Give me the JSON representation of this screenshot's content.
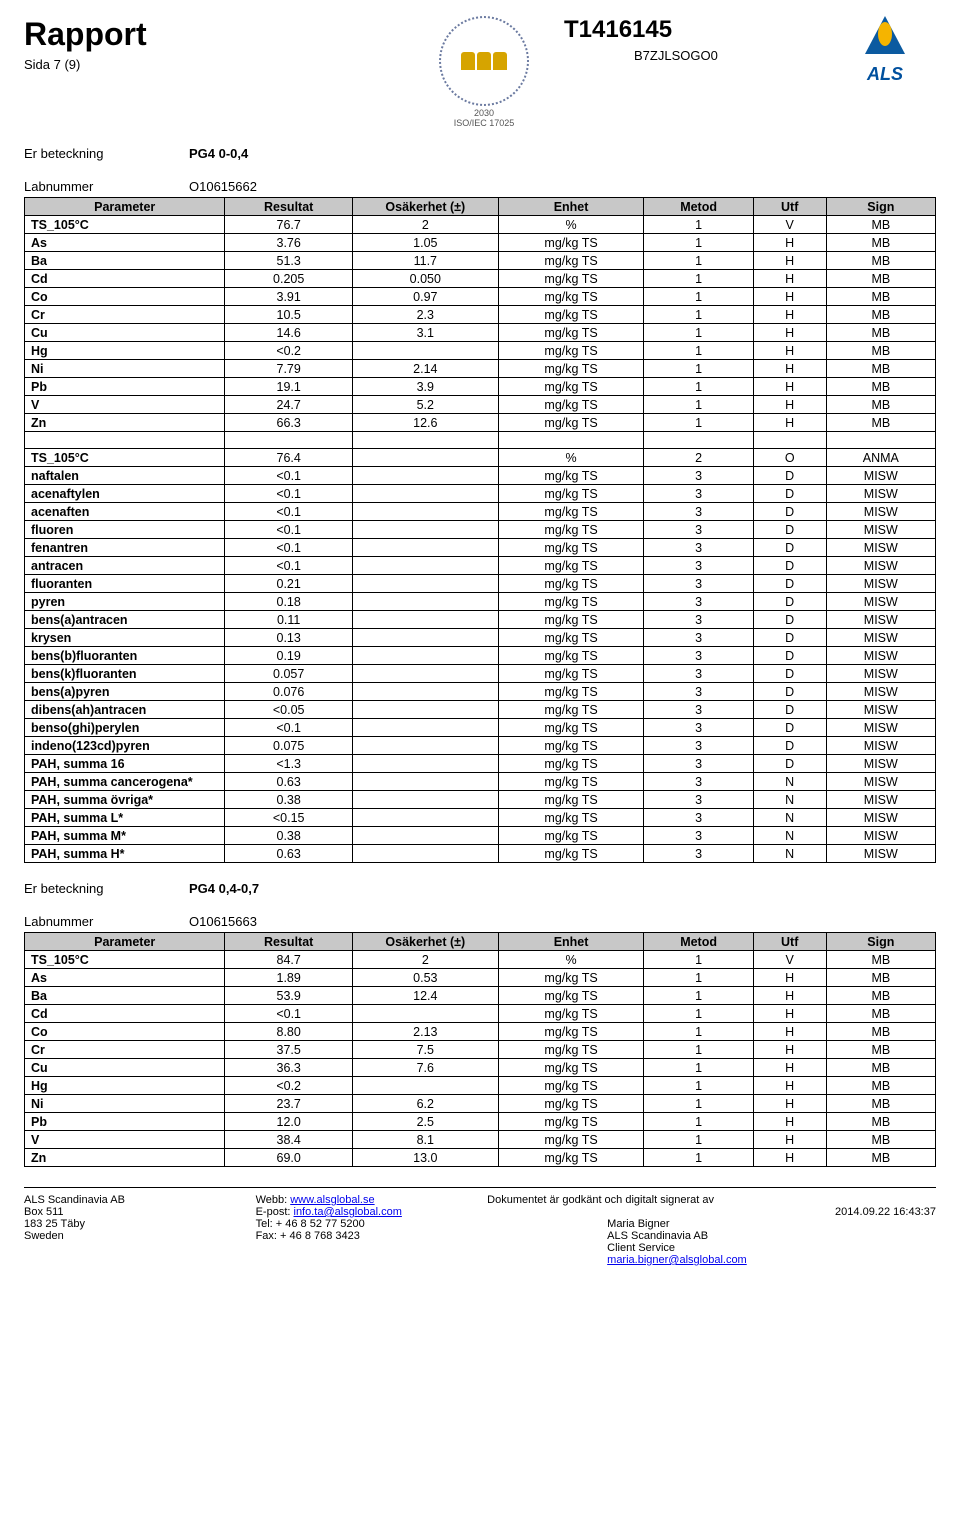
{
  "header": {
    "title": "Rapport",
    "page": "Sida 7 (9)",
    "report_no": "T1416145",
    "ref_code": "B7ZJLSOGO0",
    "swedac_year": "2030",
    "swedac_std": "ISO/IEC 17025",
    "als": "ALS"
  },
  "block1": {
    "er_label": "Er beteckning",
    "er_value": "PG4 0-0,4",
    "lab_label": "Labnummer",
    "lab_value": "O10615662",
    "cols": [
      "Parameter",
      "Resultat",
      "Osäkerhet (±)",
      "Enhet",
      "Metod",
      "Utf",
      "Sign"
    ],
    "rows": [
      [
        "TS_105°C",
        "76.7",
        "2",
        "%",
        "1",
        "V",
        "MB"
      ],
      [
        "As",
        "3.76",
        "1.05",
        "mg/kg TS",
        "1",
        "H",
        "MB"
      ],
      [
        "Ba",
        "51.3",
        "11.7",
        "mg/kg TS",
        "1",
        "H",
        "MB"
      ],
      [
        "Cd",
        "0.205",
        "0.050",
        "mg/kg TS",
        "1",
        "H",
        "MB"
      ],
      [
        "Co",
        "3.91",
        "0.97",
        "mg/kg TS",
        "1",
        "H",
        "MB"
      ],
      [
        "Cr",
        "10.5",
        "2.3",
        "mg/kg TS",
        "1",
        "H",
        "MB"
      ],
      [
        "Cu",
        "14.6",
        "3.1",
        "mg/kg TS",
        "1",
        "H",
        "MB"
      ],
      [
        "Hg",
        "<0.2",
        "",
        "mg/kg TS",
        "1",
        "H",
        "MB"
      ],
      [
        "Ni",
        "7.79",
        "2.14",
        "mg/kg TS",
        "1",
        "H",
        "MB"
      ],
      [
        "Pb",
        "19.1",
        "3.9",
        "mg/kg TS",
        "1",
        "H",
        "MB"
      ],
      [
        "V",
        "24.7",
        "5.2",
        "mg/kg TS",
        "1",
        "H",
        "MB"
      ],
      [
        "Zn",
        "66.3",
        "12.6",
        "mg/kg TS",
        "1",
        "H",
        "MB"
      ]
    ],
    "rows2": [
      [
        "TS_105°C",
        "76.4",
        "",
        "%",
        "2",
        "O",
        "ANMA"
      ],
      [
        "naftalen",
        "<0.1",
        "",
        "mg/kg TS",
        "3",
        "D",
        "MISW"
      ],
      [
        "acenaftylen",
        "<0.1",
        "",
        "mg/kg TS",
        "3",
        "D",
        "MISW"
      ],
      [
        "acenaften",
        "<0.1",
        "",
        "mg/kg TS",
        "3",
        "D",
        "MISW"
      ],
      [
        "fluoren",
        "<0.1",
        "",
        "mg/kg TS",
        "3",
        "D",
        "MISW"
      ],
      [
        "fenantren",
        "<0.1",
        "",
        "mg/kg TS",
        "3",
        "D",
        "MISW"
      ],
      [
        "antracen",
        "<0.1",
        "",
        "mg/kg TS",
        "3",
        "D",
        "MISW"
      ],
      [
        "fluoranten",
        "0.21",
        "",
        "mg/kg TS",
        "3",
        "D",
        "MISW"
      ],
      [
        "pyren",
        "0.18",
        "",
        "mg/kg TS",
        "3",
        "D",
        "MISW"
      ],
      [
        "bens(a)antracen",
        "0.11",
        "",
        "mg/kg TS",
        "3",
        "D",
        "MISW"
      ],
      [
        "krysen",
        "0.13",
        "",
        "mg/kg TS",
        "3",
        "D",
        "MISW"
      ],
      [
        "bens(b)fluoranten",
        "0.19",
        "",
        "mg/kg TS",
        "3",
        "D",
        "MISW"
      ],
      [
        "bens(k)fluoranten",
        "0.057",
        "",
        "mg/kg TS",
        "3",
        "D",
        "MISW"
      ],
      [
        "bens(a)pyren",
        "0.076",
        "",
        "mg/kg TS",
        "3",
        "D",
        "MISW"
      ],
      [
        "dibens(ah)antracen",
        "<0.05",
        "",
        "mg/kg TS",
        "3",
        "D",
        "MISW"
      ],
      [
        "benso(ghi)perylen",
        "<0.1",
        "",
        "mg/kg TS",
        "3",
        "D",
        "MISW"
      ],
      [
        "indeno(123cd)pyren",
        "0.075",
        "",
        "mg/kg TS",
        "3",
        "D",
        "MISW"
      ],
      [
        "PAH, summa 16",
        "<1.3",
        "",
        "mg/kg TS",
        "3",
        "D",
        "MISW"
      ],
      [
        "PAH, summa cancerogena*",
        "0.63",
        "",
        "mg/kg TS",
        "3",
        "N",
        "MISW"
      ],
      [
        "PAH, summa övriga*",
        "0.38",
        "",
        "mg/kg TS",
        "3",
        "N",
        "MISW"
      ],
      [
        "PAH, summa L*",
        "<0.15",
        "",
        "mg/kg TS",
        "3",
        "N",
        "MISW"
      ],
      [
        "PAH, summa M*",
        "0.38",
        "",
        "mg/kg TS",
        "3",
        "N",
        "MISW"
      ],
      [
        "PAH, summa H*",
        "0.63",
        "",
        "mg/kg TS",
        "3",
        "N",
        "MISW"
      ]
    ]
  },
  "block2": {
    "er_label": "Er beteckning",
    "er_value": "PG4 0,4-0,7",
    "lab_label": "Labnummer",
    "lab_value": "O10615663",
    "cols": [
      "Parameter",
      "Resultat",
      "Osäkerhet (±)",
      "Enhet",
      "Metod",
      "Utf",
      "Sign"
    ],
    "rows": [
      [
        "TS_105°C",
        "84.7",
        "2",
        "%",
        "1",
        "V",
        "MB"
      ],
      [
        "As",
        "1.89",
        "0.53",
        "mg/kg TS",
        "1",
        "H",
        "MB"
      ],
      [
        "Ba",
        "53.9",
        "12.4",
        "mg/kg TS",
        "1",
        "H",
        "MB"
      ],
      [
        "Cd",
        "<0.1",
        "",
        "mg/kg TS",
        "1",
        "H",
        "MB"
      ],
      [
        "Co",
        "8.80",
        "2.13",
        "mg/kg TS",
        "1",
        "H",
        "MB"
      ],
      [
        "Cr",
        "37.5",
        "7.5",
        "mg/kg TS",
        "1",
        "H",
        "MB"
      ],
      [
        "Cu",
        "36.3",
        "7.6",
        "mg/kg TS",
        "1",
        "H",
        "MB"
      ],
      [
        "Hg",
        "<0.2",
        "",
        "mg/kg TS",
        "1",
        "H",
        "MB"
      ],
      [
        "Ni",
        "23.7",
        "6.2",
        "mg/kg TS",
        "1",
        "H",
        "MB"
      ],
      [
        "Pb",
        "12.0",
        "2.5",
        "mg/kg TS",
        "1",
        "H",
        "MB"
      ],
      [
        "V",
        "38.4",
        "8.1",
        "mg/kg TS",
        "1",
        "H",
        "MB"
      ],
      [
        "Zn",
        "69.0",
        "13.0",
        "mg/kg TS",
        "1",
        "H",
        "MB"
      ]
    ]
  },
  "footer": {
    "addr1": "ALS Scandinavia AB",
    "addr2": "Box 511",
    "addr3": "183 25 Täby",
    "addr4": "Sweden",
    "web_label": "Webb:",
    "web_url": "www.alsglobal.se",
    "email_label": "E-post:",
    "email": "info.ta@alsglobal.com",
    "tel_label": "Tel:",
    "tel": "+ 46 8 52 77 5200",
    "fax_label": "Fax:",
    "fax": "+ 46 8 768 3423",
    "sig_text": "Dokumentet är godkänt och digitalt signerat av",
    "sig_name": "Maria Bigner",
    "company": "ALS Scandinavia AB",
    "dept": "Client Service",
    "sig_email": "maria.bigner@alsglobal.com",
    "timestamp": "2014.09.22 16:43:37"
  }
}
